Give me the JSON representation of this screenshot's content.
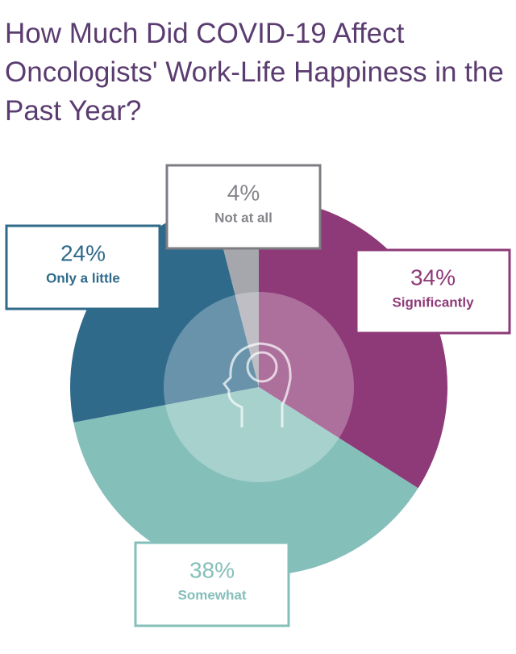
{
  "chart_data": {
    "type": "pie",
    "title": "How Much Did COVID-19 Affect Oncologists' Work-Life Happiness in the Past Year?",
    "categories": [
      "Significantly",
      "Somewhat",
      "Only a little",
      "Not at all"
    ],
    "values": [
      34,
      38,
      24,
      4
    ],
    "value_labels": [
      "34%",
      "38%",
      "24%",
      "4%"
    ],
    "colors": [
      "#8e3a78",
      "#84bfba",
      "#2f6a8a",
      "#a6a6ad"
    ]
  }
}
